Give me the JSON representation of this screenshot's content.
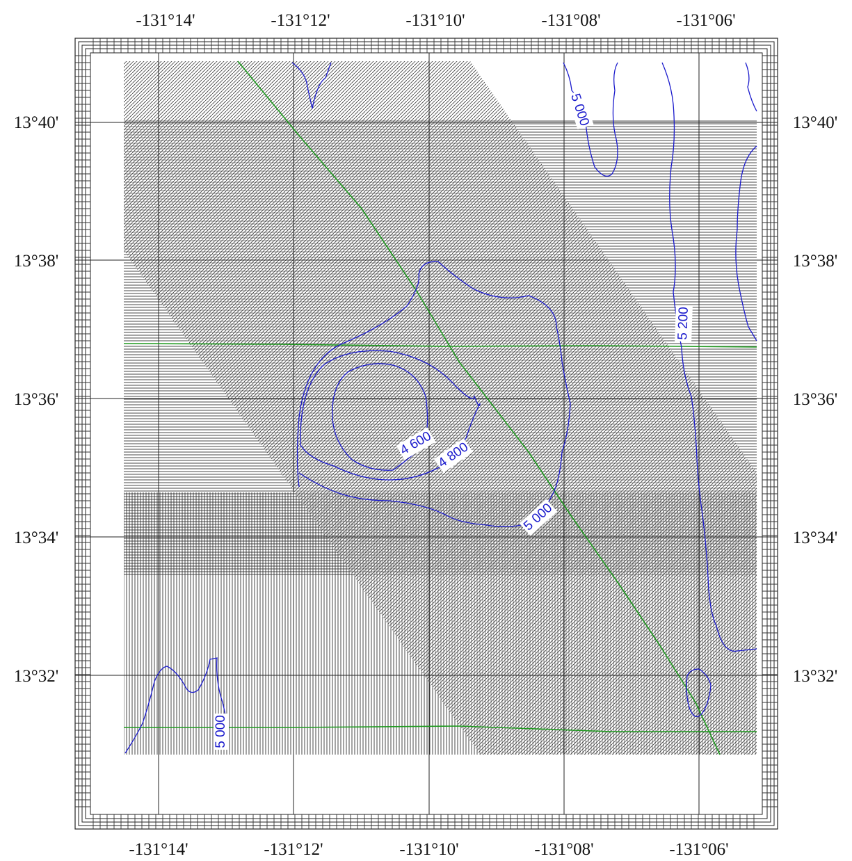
{
  "map": {
    "top_longitude_labels": [
      "-131°14'",
      "-131°12'",
      "-131°10'",
      "-131°08'",
      "-131°06'"
    ],
    "bottom_longitude_labels": [
      "-131°14'",
      "-131°12'",
      "-131°10'",
      "-131°08'",
      "-131°06'"
    ],
    "left_latitude_labels": [
      "13°40'",
      "13°38'",
      "13°36'",
      "13°34'",
      "13°32'"
    ],
    "right_latitude_labels": [
      "13°40'",
      "13°38'",
      "13°36'",
      "13°34'",
      "13°32'"
    ],
    "contour_labels": [
      "5 000",
      "5 200",
      "4 600",
      "4 800",
      "5 000",
      "5 000"
    ],
    "colors": {
      "contour": "#1a1acc",
      "track": "#1f9a1f",
      "grid": "#222222",
      "hatch": "#333333",
      "background": "#ffffff"
    }
  }
}
